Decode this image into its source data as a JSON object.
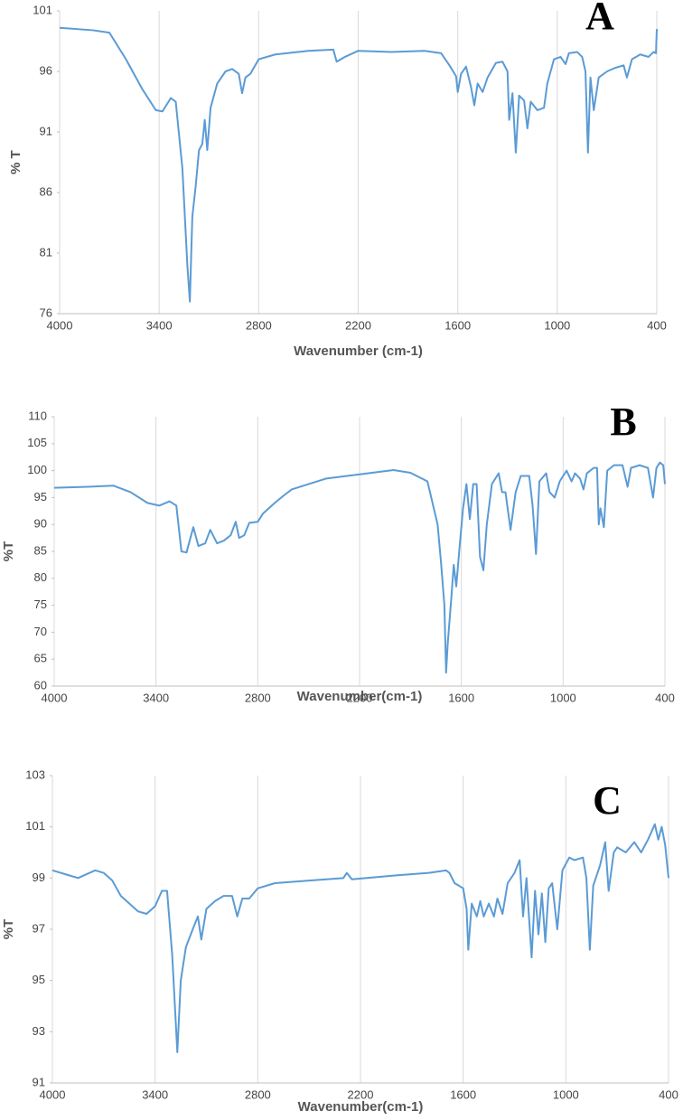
{
  "chart_data": [
    {
      "type": "line",
      "annotation": "A",
      "xlabel": "Wavenumber (cm-1)",
      "ylabel": "% T",
      "color": "#5b9bd5",
      "xlim": [
        4000,
        400
      ],
      "xticks": [
        4000,
        3400,
        2800,
        2200,
        1600,
        1000,
        400
      ],
      "ylim": [
        76,
        101
      ],
      "yticks": [
        76,
        81,
        86,
        91,
        96,
        101
      ],
      "grid": true,
      "x": [
        4000,
        3800,
        3700,
        3600,
        3500,
        3420,
        3380,
        3330,
        3300,
        3260,
        3230,
        3215,
        3200,
        3180,
        3160,
        3140,
        3125,
        3110,
        3090,
        3050,
        3000,
        2960,
        2920,
        2900,
        2880,
        2850,
        2800,
        2700,
        2500,
        2350,
        2330,
        2280,
        2200,
        2000,
        1800,
        1700,
        1650,
        1610,
        1600,
        1580,
        1550,
        1520,
        1500,
        1480,
        1450,
        1420,
        1370,
        1330,
        1300,
        1290,
        1270,
        1250,
        1230,
        1200,
        1180,
        1160,
        1120,
        1080,
        1060,
        1020,
        980,
        950,
        930,
        880,
        850,
        830,
        815,
        800,
        780,
        750,
        700,
        650,
        600,
        580,
        550,
        500,
        450,
        420,
        405,
        400
      ],
      "values": [
        99.6,
        99.4,
        99.2,
        97,
        94.5,
        92.8,
        92.7,
        93.8,
        93.5,
        88,
        80,
        77,
        84,
        86.5,
        89.5,
        90,
        92,
        89.5,
        93,
        95,
        96,
        96.2,
        95.8,
        94.2,
        95.5,
        95.8,
        97,
        97.4,
        97.7,
        97.8,
        96.8,
        97.2,
        97.7,
        97.6,
        97.7,
        97.5,
        96.5,
        95.6,
        94.3,
        95.8,
        96.4,
        94.7,
        93.2,
        95,
        94.3,
        95.5,
        96.7,
        96.8,
        96,
        92,
        94.2,
        89.3,
        94,
        93.6,
        91.3,
        93.5,
        92.8,
        93,
        95,
        97,
        97.2,
        96.6,
        97.5,
        97.6,
        97.2,
        96,
        89.3,
        95.5,
        92.8,
        95.5,
        96,
        96.3,
        96.5,
        95.5,
        97,
        97.4,
        97.2,
        97.6,
        97.5,
        99.5
      ]
    },
    {
      "type": "line",
      "annotation": "B",
      "xlabel": "Wavenumber(cm-1)",
      "ylabel": "%T",
      "color": "#5b9bd5",
      "xlim": [
        4000,
        400
      ],
      "xticks": [
        4000,
        3400,
        2800,
        2200,
        1600,
        1000,
        400
      ],
      "ylim": [
        60,
        110
      ],
      "yticks": [
        60,
        65,
        70,
        75,
        80,
        85,
        90,
        95,
        100,
        105,
        110
      ],
      "grid": true,
      "x": [
        4000,
        3800,
        3650,
        3550,
        3450,
        3380,
        3320,
        3280,
        3250,
        3220,
        3180,
        3150,
        3110,
        3080,
        3040,
        3000,
        2960,
        2930,
        2910,
        2880,
        2850,
        2800,
        2770,
        2700,
        2650,
        2600,
        2400,
        2200,
        2000,
        1900,
        1800,
        1740,
        1720,
        1700,
        1690,
        1680,
        1660,
        1645,
        1630,
        1610,
        1590,
        1570,
        1550,
        1530,
        1510,
        1490,
        1470,
        1450,
        1420,
        1380,
        1360,
        1340,
        1310,
        1280,
        1250,
        1200,
        1180,
        1160,
        1140,
        1100,
        1080,
        1050,
        1020,
        980,
        950,
        930,
        900,
        880,
        860,
        820,
        800,
        790,
        780,
        760,
        740,
        700,
        650,
        620,
        600,
        550,
        500,
        470,
        450,
        430,
        410,
        400
      ],
      "values": [
        96.8,
        97,
        97.2,
        96,
        94,
        93.5,
        94.3,
        93.5,
        85,
        84.8,
        89.5,
        86,
        86.5,
        89,
        86.5,
        87,
        88,
        90.5,
        87.5,
        88,
        90.3,
        90.5,
        92,
        94,
        95.3,
        96.5,
        98.5,
        99.3,
        100.1,
        99.6,
        98,
        90,
        83,
        75,
        62.5,
        68,
        76,
        82.5,
        78.5,
        86,
        93,
        97.5,
        91,
        97.5,
        97.5,
        84,
        81.5,
        90,
        97.5,
        99.5,
        96,
        96,
        89,
        96,
        99,
        99,
        93.5,
        84.5,
        98,
        99.5,
        96,
        95,
        98,
        100,
        98,
        99.5,
        98.5,
        96.5,
        99.5,
        100.5,
        100.5,
        90,
        93,
        89.5,
        100,
        101,
        101,
        97,
        100.5,
        101,
        100.5,
        95,
        100.5,
        101.5,
        101,
        97.5
      ]
    },
    {
      "type": "line",
      "annotation": "C",
      "xlabel": "Wavenumber(cm-1)",
      "ylabel": "%T",
      "color": "#5b9bd5",
      "xlim": [
        4000,
        400
      ],
      "xticks": [
        4000,
        3400,
        2800,
        2200,
        1600,
        1000,
        400
      ],
      "ylim": [
        91,
        103
      ],
      "yticks": [
        91,
        93,
        95,
        97,
        99,
        101,
        103
      ],
      "grid": true,
      "x": [
        4000,
        3900,
        3850,
        3750,
        3700,
        3650,
        3600,
        3500,
        3450,
        3400,
        3360,
        3330,
        3300,
        3270,
        3250,
        3220,
        3180,
        3150,
        3130,
        3100,
        3050,
        3000,
        2950,
        2920,
        2890,
        2850,
        2800,
        2700,
        2500,
        2300,
        2280,
        2250,
        2000,
        1800,
        1700,
        1680,
        1650,
        1600,
        1580,
        1570,
        1550,
        1520,
        1500,
        1480,
        1450,
        1420,
        1400,
        1370,
        1340,
        1300,
        1270,
        1250,
        1230,
        1200,
        1180,
        1160,
        1140,
        1120,
        1100,
        1080,
        1050,
        1020,
        980,
        950,
        900,
        880,
        860,
        840,
        800,
        770,
        750,
        720,
        700,
        650,
        600,
        560,
        520,
        480,
        460,
        440,
        420,
        400
      ],
      "values": [
        99.3,
        99.1,
        99,
        99.3,
        99.2,
        98.9,
        98.3,
        97.7,
        97.6,
        97.9,
        98.5,
        98.5,
        96,
        92.2,
        95,
        96.3,
        97,
        97.5,
        96.6,
        97.8,
        98.1,
        98.3,
        98.3,
        97.5,
        98.2,
        98.2,
        98.6,
        98.8,
        98.9,
        99,
        99.2,
        98.95,
        99.1,
        99.2,
        99.3,
        99.2,
        98.8,
        98.6,
        97.8,
        96.2,
        98,
        97.5,
        98.1,
        97.5,
        98,
        97.5,
        98.2,
        97.6,
        98.8,
        99.2,
        99.7,
        97.5,
        99,
        95.9,
        98.5,
        96.8,
        98.4,
        96.5,
        98.6,
        98.8,
        97,
        99.3,
        99.8,
        99.7,
        99.8,
        99,
        96.2,
        98.7,
        99.5,
        100.4,
        98.5,
        100,
        100.2,
        100,
        100.4,
        100,
        100.5,
        101.1,
        100.5,
        101,
        100.3,
        99
      ]
    }
  ]
}
